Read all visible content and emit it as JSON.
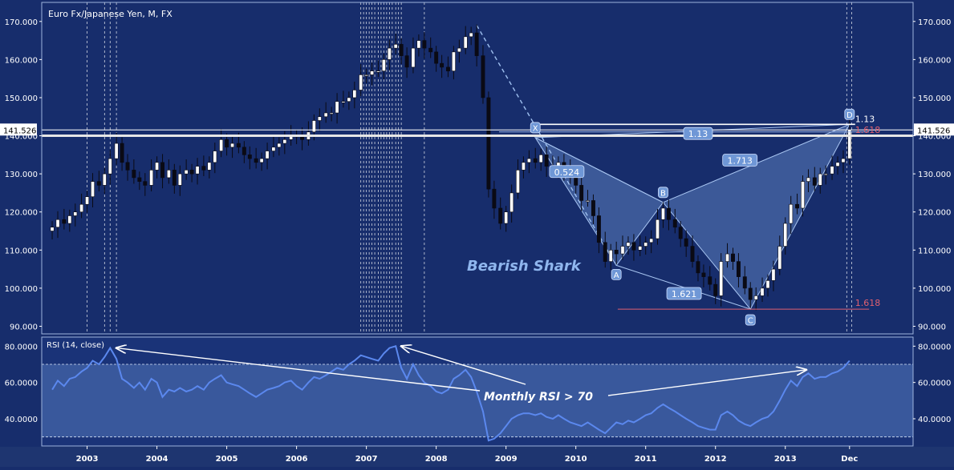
{
  "chart_data": [
    {
      "type": "candlestick",
      "title": "Euro Fx/Japanese Yen, M, FX",
      "annotation": "Bearish Shark",
      "current_price_label": "141.526",
      "ylim": [
        88,
        175
      ],
      "y_ticks": [
        "170.000",
        "160.000",
        "150.000",
        "140.000",
        "130.000",
        "120.000",
        "110.000",
        "100.000",
        "90.000"
      ],
      "y_tick_values": [
        170,
        160,
        150,
        140,
        130,
        120,
        110,
        100,
        90
      ],
      "x_ticks": [
        "2003",
        "2004",
        "2005",
        "2006",
        "2007",
        "2008",
        "2009",
        "2010",
        "2011",
        "2012",
        "2013",
        "Dec"
      ],
      "x_tick_dates": [
        2003.0,
        2004.0,
        2005.0,
        2006.0,
        2007.0,
        2008.0,
        2009.0,
        2010.0,
        2011.0,
        2012.0,
        2013.0,
        2013.92
      ],
      "closes": [
        [
          2002.5,
          116
        ],
        [
          2002.58,
          118
        ],
        [
          2002.67,
          117
        ],
        [
          2002.75,
          119
        ],
        [
          2002.83,
          120
        ],
        [
          2002.92,
          122
        ],
        [
          2003.0,
          124
        ],
        [
          2003.08,
          128
        ],
        [
          2003.17,
          127
        ],
        [
          2003.25,
          130
        ],
        [
          2003.33,
          134
        ],
        [
          2003.42,
          138
        ],
        [
          2003.5,
          133
        ],
        [
          2003.58,
          131
        ],
        [
          2003.67,
          129
        ],
        [
          2003.75,
          128
        ],
        [
          2003.83,
          127
        ],
        [
          2003.92,
          131
        ],
        [
          2004.0,
          133
        ],
        [
          2004.08,
          129
        ],
        [
          2004.17,
          131
        ],
        [
          2004.25,
          127
        ],
        [
          2004.33,
          130
        ],
        [
          2004.42,
          131
        ],
        [
          2004.5,
          130
        ],
        [
          2004.58,
          132
        ],
        [
          2004.67,
          131
        ],
        [
          2004.75,
          133
        ],
        [
          2004.83,
          136
        ],
        [
          2004.92,
          139
        ],
        [
          2005.0,
          137
        ],
        [
          2005.08,
          138
        ],
        [
          2005.17,
          137
        ],
        [
          2005.25,
          135
        ],
        [
          2005.33,
          134
        ],
        [
          2005.42,
          133
        ],
        [
          2005.5,
          134
        ],
        [
          2005.58,
          136
        ],
        [
          2005.67,
          137
        ],
        [
          2005.75,
          138
        ],
        [
          2005.83,
          139
        ],
        [
          2005.92,
          140
        ],
        [
          2006.0,
          140
        ],
        [
          2006.08,
          139
        ],
        [
          2006.17,
          141
        ],
        [
          2006.25,
          144
        ],
        [
          2006.33,
          145
        ],
        [
          2006.42,
          146
        ],
        [
          2006.5,
          146
        ],
        [
          2006.58,
          149
        ],
        [
          2006.67,
          149
        ],
        [
          2006.75,
          150
        ],
        [
          2006.83,
          152
        ],
        [
          2006.92,
          156
        ],
        [
          2007.0,
          156
        ],
        [
          2007.08,
          157
        ],
        [
          2007.17,
          157
        ],
        [
          2007.25,
          160
        ],
        [
          2007.33,
          163
        ],
        [
          2007.42,
          164
        ],
        [
          2007.5,
          161
        ],
        [
          2007.58,
          158
        ],
        [
          2007.67,
          163
        ],
        [
          2007.75,
          165
        ],
        [
          2007.83,
          163
        ],
        [
          2007.92,
          162
        ],
        [
          2008.0,
          159
        ],
        [
          2008.08,
          158
        ],
        [
          2008.17,
          157
        ],
        [
          2008.25,
          162
        ],
        [
          2008.33,
          163
        ],
        [
          2008.42,
          166
        ],
        [
          2008.5,
          167
        ],
        [
          2008.58,
          161
        ],
        [
          2008.67,
          150
        ],
        [
          2008.75,
          126
        ],
        [
          2008.83,
          121
        ],
        [
          2008.92,
          117
        ],
        [
          2009.0,
          120
        ],
        [
          2009.08,
          125
        ],
        [
          2009.17,
          131
        ],
        [
          2009.25,
          133
        ],
        [
          2009.33,
          134
        ],
        [
          2009.42,
          133
        ],
        [
          2009.5,
          135
        ],
        [
          2009.58,
          132
        ],
        [
          2009.67,
          131
        ],
        [
          2009.75,
          133
        ],
        [
          2009.83,
          131
        ],
        [
          2009.92,
          129
        ],
        [
          2010.0,
          127
        ],
        [
          2010.08,
          123
        ],
        [
          2010.17,
          123
        ],
        [
          2010.25,
          119
        ],
        [
          2010.33,
          112
        ],
        [
          2010.42,
          107
        ],
        [
          2010.5,
          110
        ],
        [
          2010.58,
          109
        ],
        [
          2010.67,
          111
        ],
        [
          2010.75,
          112
        ],
        [
          2010.83,
          110
        ],
        [
          2010.92,
          111
        ],
        [
          2011.0,
          112
        ],
        [
          2011.08,
          113
        ],
        [
          2011.17,
          118
        ],
        [
          2011.25,
          121
        ],
        [
          2011.33,
          118
        ],
        [
          2011.42,
          116
        ],
        [
          2011.5,
          113
        ],
        [
          2011.58,
          111
        ],
        [
          2011.67,
          107
        ],
        [
          2011.75,
          104
        ],
        [
          2011.83,
          103
        ],
        [
          2011.92,
          101
        ],
        [
          2012.0,
          98
        ],
        [
          2012.08,
          107
        ],
        [
          2012.17,
          109
        ],
        [
          2012.25,
          107
        ],
        [
          2012.33,
          103
        ],
        [
          2012.42,
          100
        ],
        [
          2012.5,
          97
        ],
        [
          2012.58,
          98
        ],
        [
          2012.67,
          100
        ],
        [
          2012.75,
          102
        ],
        [
          2012.83,
          105
        ],
        [
          2012.92,
          111
        ],
        [
          2013.0,
          117
        ],
        [
          2013.08,
          122
        ],
        [
          2013.17,
          121
        ],
        [
          2013.25,
          128
        ],
        [
          2013.33,
          129
        ],
        [
          2013.42,
          127
        ],
        [
          2013.5,
          130
        ],
        [
          2013.58,
          130
        ],
        [
          2013.67,
          132
        ],
        [
          2013.75,
          133
        ],
        [
          2013.83,
          134
        ],
        [
          2013.92,
          141.5
        ]
      ],
      "pattern_points": [
        {
          "label": "X",
          "date": 2009.42,
          "price": 139.5
        },
        {
          "label": "A",
          "date": 2010.58,
          "price": 106
        },
        {
          "label": "B",
          "date": 2011.25,
          "price": 122.5
        },
        {
          "label": "C",
          "date": 2012.5,
          "price": 94.5
        },
        {
          "label": "D",
          "date": 2013.92,
          "price": 143
        }
      ],
      "ratios": [
        {
          "text": "0.524",
          "date": 2009.87,
          "price": 130.5
        },
        {
          "text": "1.621",
          "date": 2011.55,
          "price": 98.5
        },
        {
          "text": "1.713",
          "date": 2012.35,
          "price": 133.5
        },
        {
          "text": "1.13",
          "date": 2011.75,
          "price": 140.5
        }
      ],
      "levels": [
        {
          "text": "1.13",
          "price": 143,
          "color": "#ffffff"
        },
        {
          "text": "1.618",
          "price": 141,
          "color": "#e06070"
        },
        {
          "text": "1.618",
          "price": 94.5,
          "color": "#e06070"
        }
      ]
    },
    {
      "type": "line",
      "series_label": "RSI (14, close)",
      "annotation": "Monthly RSI > 70",
      "ylim": [
        25,
        85
      ],
      "overbought": 70,
      "oversold": 30,
      "y_ticks": [
        "80.0000",
        "60.0000",
        "40.0000"
      ],
      "y_tick_values": [
        80,
        60,
        40
      ],
      "values": [
        [
          2002.5,
          56
        ],
        [
          2002.58,
          61
        ],
        [
          2002.67,
          58
        ],
        [
          2002.75,
          62
        ],
        [
          2002.83,
          63
        ],
        [
          2002.92,
          66
        ],
        [
          2003.0,
          68
        ],
        [
          2003.08,
          72
        ],
        [
          2003.17,
          70
        ],
        [
          2003.25,
          74
        ],
        [
          2003.33,
          79
        ],
        [
          2003.42,
          73
        ],
        [
          2003.5,
          62
        ],
        [
          2003.58,
          60
        ],
        [
          2003.67,
          57
        ],
        [
          2003.75,
          60
        ],
        [
          2003.83,
          56
        ],
        [
          2003.92,
          62
        ],
        [
          2004.0,
          60
        ],
        [
          2004.08,
          52
        ],
        [
          2004.17,
          56
        ],
        [
          2004.25,
          55
        ],
        [
          2004.33,
          57
        ],
        [
          2004.42,
          55
        ],
        [
          2004.5,
          56
        ],
        [
          2004.58,
          58
        ],
        [
          2004.67,
          56
        ],
        [
          2004.75,
          60
        ],
        [
          2004.83,
          62
        ],
        [
          2004.92,
          64
        ],
        [
          2005.0,
          60
        ],
        [
          2005.08,
          59
        ],
        [
          2005.17,
          58
        ],
        [
          2005.25,
          56
        ],
        [
          2005.33,
          54
        ],
        [
          2005.42,
          52
        ],
        [
          2005.5,
          54
        ],
        [
          2005.58,
          56
        ],
        [
          2005.67,
          57
        ],
        [
          2005.75,
          58
        ],
        [
          2005.83,
          60
        ],
        [
          2005.92,
          61
        ],
        [
          2006.0,
          58
        ],
        [
          2006.08,
          56
        ],
        [
          2006.17,
          60
        ],
        [
          2006.25,
          63
        ],
        [
          2006.33,
          62
        ],
        [
          2006.42,
          64
        ],
        [
          2006.5,
          66
        ],
        [
          2006.58,
          68
        ],
        [
          2006.67,
          67
        ],
        [
          2006.75,
          70
        ],
        [
          2006.83,
          72
        ],
        [
          2006.92,
          75
        ],
        [
          2007.0,
          74
        ],
        [
          2007.08,
          73
        ],
        [
          2007.17,
          72
        ],
        [
          2007.25,
          76
        ],
        [
          2007.33,
          79
        ],
        [
          2007.42,
          80
        ],
        [
          2007.5,
          68
        ],
        [
          2007.58,
          62
        ],
        [
          2007.67,
          70
        ],
        [
          2007.75,
          64
        ],
        [
          2007.83,
          60
        ],
        [
          2007.92,
          58
        ],
        [
          2008.0,
          55
        ],
        [
          2008.08,
          54
        ],
        [
          2008.17,
          56
        ],
        [
          2008.25,
          62
        ],
        [
          2008.33,
          64
        ],
        [
          2008.42,
          67
        ],
        [
          2008.5,
          63
        ],
        [
          2008.58,
          55
        ],
        [
          2008.67,
          44
        ],
        [
          2008.75,
          28
        ],
        [
          2008.83,
          29
        ],
        [
          2008.92,
          32
        ],
        [
          2009.0,
          36
        ],
        [
          2009.08,
          40
        ],
        [
          2009.17,
          42
        ],
        [
          2009.25,
          43
        ],
        [
          2009.33,
          43
        ],
        [
          2009.42,
          42
        ],
        [
          2009.5,
          43
        ],
        [
          2009.58,
          41
        ],
        [
          2009.67,
          40
        ],
        [
          2009.75,
          42
        ],
        [
          2009.83,
          40
        ],
        [
          2009.92,
          38
        ],
        [
          2010.0,
          37
        ],
        [
          2010.08,
          36
        ],
        [
          2010.17,
          38
        ],
        [
          2010.25,
          36
        ],
        [
          2010.33,
          34
        ],
        [
          2010.42,
          32
        ],
        [
          2010.5,
          35
        ],
        [
          2010.58,
          38
        ],
        [
          2010.67,
          37
        ],
        [
          2010.75,
          39
        ],
        [
          2010.83,
          38
        ],
        [
          2010.92,
          40
        ],
        [
          2011.0,
          42
        ],
        [
          2011.08,
          43
        ],
        [
          2011.17,
          46
        ],
        [
          2011.25,
          48
        ],
        [
          2011.33,
          46
        ],
        [
          2011.42,
          44
        ],
        [
          2011.5,
          42
        ],
        [
          2011.58,
          40
        ],
        [
          2011.67,
          38
        ],
        [
          2011.75,
          36
        ],
        [
          2011.83,
          35
        ],
        [
          2011.92,
          34
        ],
        [
          2012.0,
          34
        ],
        [
          2012.08,
          42
        ],
        [
          2012.17,
          44
        ],
        [
          2012.25,
          42
        ],
        [
          2012.33,
          39
        ],
        [
          2012.42,
          37
        ],
        [
          2012.5,
          36
        ],
        [
          2012.58,
          38
        ],
        [
          2012.67,
          40
        ],
        [
          2012.75,
          41
        ],
        [
          2012.83,
          44
        ],
        [
          2012.92,
          50
        ],
        [
          2013.0,
          56
        ],
        [
          2013.08,
          61
        ],
        [
          2013.17,
          58
        ],
        [
          2013.25,
          63
        ],
        [
          2013.33,
          65
        ],
        [
          2013.42,
          62
        ],
        [
          2013.5,
          63
        ],
        [
          2013.58,
          63
        ],
        [
          2013.67,
          65
        ],
        [
          2013.75,
          66
        ],
        [
          2013.83,
          68
        ],
        [
          2013.92,
          72
        ]
      ]
    }
  ]
}
